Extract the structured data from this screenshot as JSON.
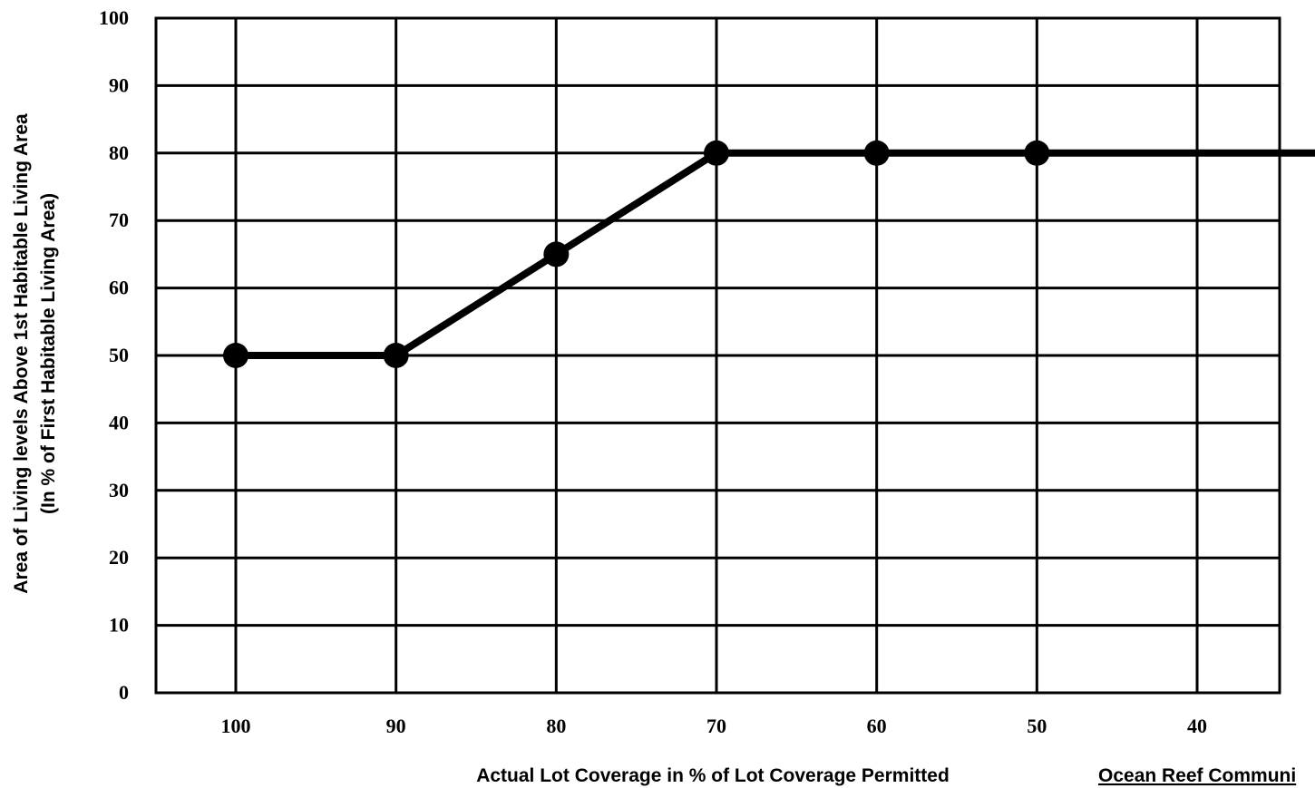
{
  "chart_data": {
    "type": "line",
    "x": [
      100,
      90,
      80,
      70,
      60,
      50
    ],
    "series": [
      {
        "name": "",
        "values": [
          50,
          50,
          65,
          80,
          80,
          80
        ],
        "color": "#000000",
        "extends_right": true
      }
    ],
    "xticks": [
      "100",
      "90",
      "80",
      "70",
      "60",
      "50",
      "40"
    ],
    "yticks": [
      "0",
      "10",
      "20",
      "30",
      "40",
      "50",
      "60",
      "70",
      "80",
      "90",
      "100"
    ],
    "xlim": [
      105,
      35
    ],
    "ylim": [
      0,
      100
    ],
    "x_reversed": true,
    "grid": true,
    "xlabel": "Actual Lot Coverage in % of Lot Coverage Permitted",
    "ylabel_line1": "Area of Living levels Above 1st Habitable Living Area",
    "ylabel_line2": "(In % of First Habitable Living Area)",
    "credit": "Ocean Reef Communi",
    "title": ""
  }
}
